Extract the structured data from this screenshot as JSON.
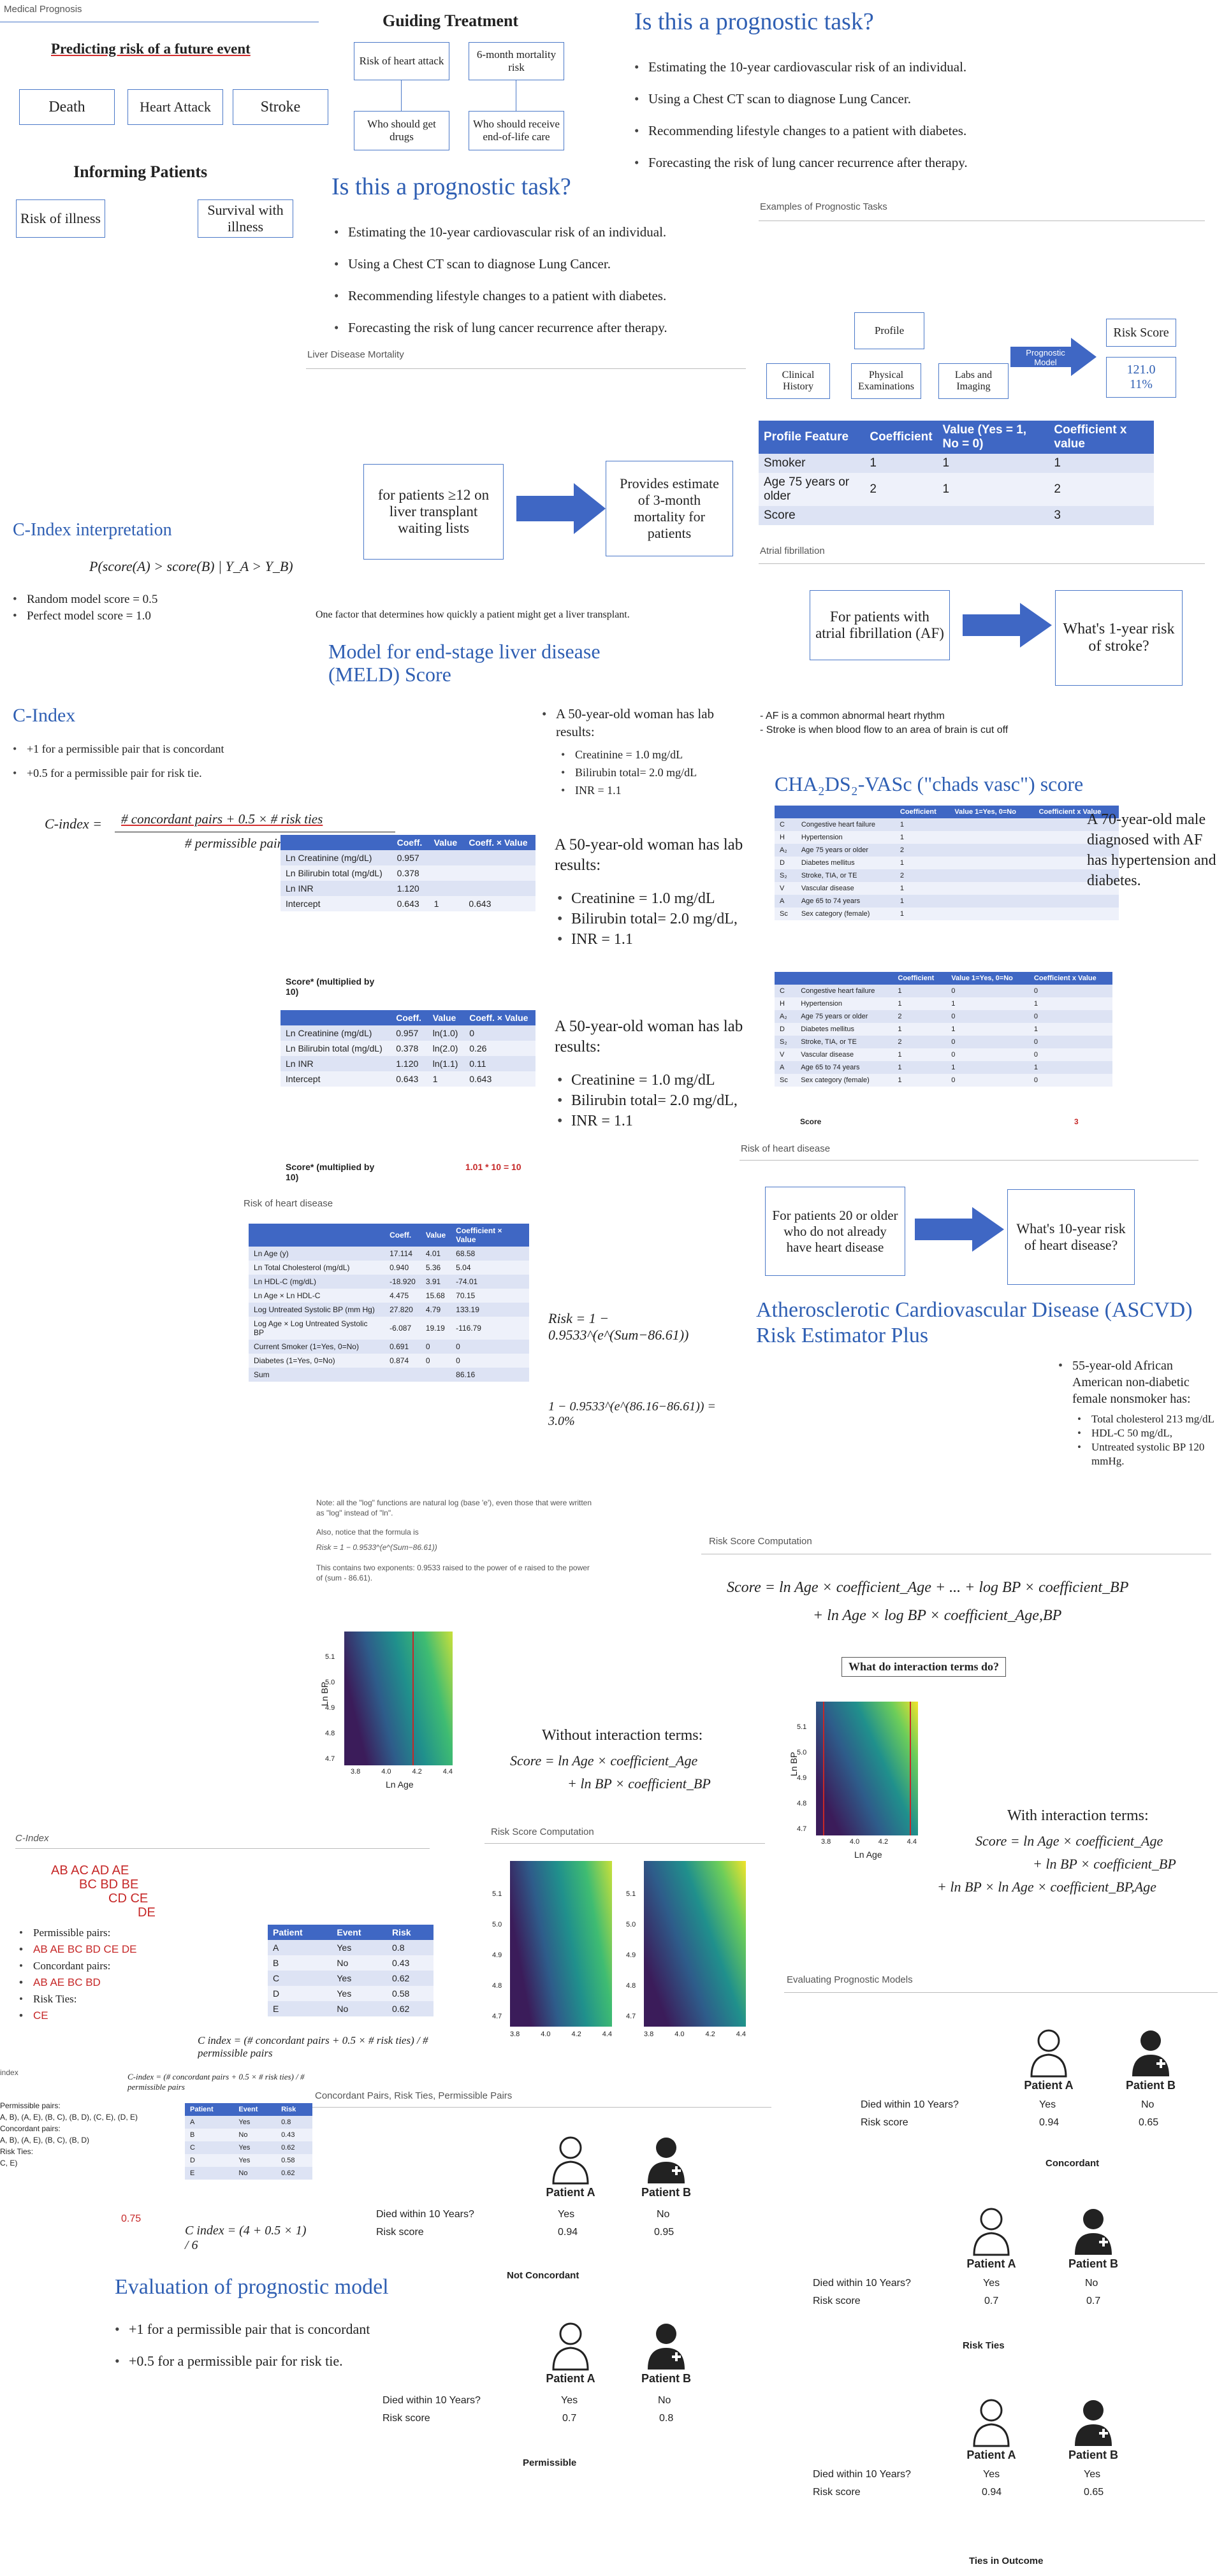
{
  "p1": {
    "caption": "Medical Prognosis",
    "title": "Predicting risk of a future event",
    "boxes": [
      "Death",
      "Heart Attack",
      "Stroke"
    ],
    "informing": "Informing Patients",
    "boxes2": [
      "Risk of illness",
      "Survival with illness"
    ]
  },
  "p2": {
    "title": "Guiding Treatment",
    "boxes": [
      "Risk of heart attack",
      "6-month mortality risk",
      "Who should get drugs",
      "Who should receive end-of-life care"
    ]
  },
  "p3": {
    "title": "Is this a prognostic task?",
    "items": [
      "Estimating the 10-year cardiovascular risk of an individual.",
      "Using a Chest CT scan to diagnose Lung Cancer.",
      "Recommending lifestyle changes to a patient with diabetes.",
      "Forecasting the risk of lung cancer recurrence after therapy."
    ]
  },
  "p4": {
    "title": "Is this a prognostic task?",
    "items": [
      "Estimating the 10-year cardiovascular risk of an individual.",
      "Using a Chest CT scan to diagnose Lung Cancer.",
      "Recommending lifestyle changes to a patient with diabetes.",
      "Forecasting the risk of lung cancer recurrence after therapy."
    ]
  },
  "p5": {
    "caption": "Examples of Prognostic Tasks",
    "profile": "Profile",
    "sub": [
      "Clinical History",
      "Physical Examinations",
      "Labs and Imaging"
    ],
    "model": "Prognostic Model",
    "score": "Risk Score",
    "score_vals": [
      "121.0",
      "11%"
    ]
  },
  "p6": {
    "headers": [
      "Profile Feature",
      "Coefficient",
      "Value (Yes = 1, No = 0)",
      "Coefficient x value"
    ],
    "rows": [
      [
        "Smoker",
        "1",
        "1",
        "1"
      ],
      [
        "Age 75 years or older",
        "2",
        "1",
        "2"
      ],
      [
        "Score",
        "",
        "",
        "3"
      ]
    ]
  },
  "p7": {
    "caption": "Liver Disease Mortality",
    "box1": "for patients ≥12 on liver transplant waiting lists",
    "box2": "Provides estimate of 3-month mortality for patients",
    "note": "One factor that determines how quickly a patient might get a liver transplant.",
    "title": "Model for end-stage liver disease (MELD) Score"
  },
  "p8": {
    "caption": "Atrial fibrillation",
    "box1": "For patients with atrial fibrillation (AF)",
    "box2": "What's 1-year risk of stroke?",
    "notes": [
      "- AF is a common abnormal heart rhythm",
      "- Stroke is when blood flow to an area of brain is cut off"
    ]
  },
  "p9": {
    "title": "C-Index interpretation",
    "formula": "P(score(A) > score(B) | Y_A > Y_B)",
    "items": [
      "Random model score = 0.5",
      "Perfect model score = 1.0"
    ]
  },
  "p10": {
    "title": "C-Index",
    "items": [
      "+1 for a permissible pair that is concordant",
      "+0.5 for a permissible pair for risk tie."
    ],
    "formula_lhs": "C-index =",
    "formula_num": "# concordant pairs + 0.5 × # risk ties",
    "formula_den": "# permissible pairs"
  },
  "p11": {
    "intro": "A 50-year-old woman has lab results:",
    "items": [
      "Creatinine = 1.0 mg/dL",
      "Bilirubin total= 2.0 mg/dL",
      "INR = 1.1"
    ]
  },
  "p12": {
    "headers": [
      "",
      "Coeff.",
      "Value",
      "Coeff. × Value"
    ],
    "rows": [
      [
        "Ln Creatinine (mg/dL)",
        "0.957",
        "",
        ""
      ],
      [
        "Ln Bilirubin total (mg/dL)",
        "0.378",
        "",
        ""
      ],
      [
        "Ln INR",
        "1.120",
        "",
        ""
      ],
      [
        "Intercept",
        "0.643",
        "1",
        "0.643"
      ]
    ],
    "foot": "Score* (multiplied by 10)"
  },
  "p13": {
    "intro": "A 50-year-old woman has lab results:",
    "items": [
      "Creatinine = 1.0 mg/dL",
      "Bilirubin total= 2.0 mg/dL,",
      "INR = 1.1"
    ]
  },
  "p14": {
    "headers": [
      "",
      "Coeff.",
      "Value",
      "Coeff. × Value"
    ],
    "rows": [
      [
        "Ln Creatinine (mg/dL)",
        "0.957",
        "ln(1.0)",
        "0"
      ],
      [
        "Ln Bilirubin total (mg/dL)",
        "0.378",
        "ln(2.0)",
        "0.26"
      ],
      [
        "Ln INR",
        "1.120",
        "ln(1.1)",
        "0.11"
      ],
      [
        "Intercept",
        "0.643",
        "1",
        "0.643"
      ]
    ],
    "foot": "Score* (multiplied by 10)",
    "foot_val": "1.01 * 10 = 10"
  },
  "p15": {
    "intro": "A 50-year-old woman has lab results:",
    "items": [
      "Creatinine = 1.0 mg/dL",
      "Bilirubin total= 2.0 mg/dL,",
      "INR = 1.1"
    ]
  },
  "p16": {
    "title": "CHA₂DS₂-VASc (\"chads vasc\") score",
    "desc": "A 70-year-old male diagnosed with AF has hypertension and diabetes.",
    "headers": [
      "",
      "",
      "Coefficient",
      "Value 1=Yes, 0=No",
      "Coefficient x Value"
    ],
    "rows": [
      [
        "C",
        "Congestive heart failure",
        "1"
      ],
      [
        "H",
        "Hypertension",
        "1"
      ],
      [
        "A₂",
        "Age 75 years or older",
        "2"
      ],
      [
        "D",
        "Diabetes mellitus",
        "1"
      ],
      [
        "S₂",
        "Stroke, TIA, or TE",
        "2"
      ],
      [
        "V",
        "Vascular disease",
        "1"
      ],
      [
        "A",
        "Age 65 to 74 years",
        "1"
      ],
      [
        "Sc",
        "Sex category (female)",
        "1"
      ]
    ],
    "score": "Score"
  },
  "p17": {
    "headers": [
      "",
      "",
      "Coefficient",
      "Value 1=Yes, 0=No",
      "Coefficient x Value"
    ],
    "rows": [
      [
        "C",
        "Congestive heart failure",
        "1",
        "0",
        "0"
      ],
      [
        "H",
        "Hypertension",
        "1",
        "1",
        "1"
      ],
      [
        "A₂",
        "Age 75 years or older",
        "2",
        "0",
        "0"
      ],
      [
        "D",
        "Diabetes mellitus",
        "1",
        "1",
        "1"
      ],
      [
        "S₂",
        "Stroke, TIA, or TE",
        "2",
        "0",
        "0"
      ],
      [
        "V",
        "Vascular disease",
        "1",
        "0",
        "0"
      ],
      [
        "A",
        "Age 65 to 74 years",
        "1",
        "1",
        "1"
      ],
      [
        "Sc",
        "Sex category (female)",
        "1",
        "0",
        "0"
      ]
    ],
    "score": "Score",
    "score_val": "3"
  },
  "p18": {
    "caption": "Risk of heart disease",
    "box1": "For patients 20 or older who do not already have heart disease",
    "box2": "What's 10-year risk of heart disease?",
    "title": "Atherosclerotic Cardiovascular Disease (ASCVD) Risk Estimator Plus",
    "intro": "55-year-old African American non-diabetic female nonsmoker has:",
    "items": [
      "Total cholesterol 213 mg/dL",
      "HDL-C 50 mg/dL,",
      "Untreated systolic BP 120 mmHg."
    ]
  },
  "p19": {
    "caption": "Risk of heart disease",
    "headers": [
      "",
      "Coeff.",
      "Value",
      "Coefficient × Value"
    ],
    "rows": [
      [
        "Ln Age (y)",
        "17.114",
        "4.01",
        "68.58"
      ],
      [
        "Ln Total Cholesterol (mg/dL)",
        "0.940",
        "5.36",
        "5.04"
      ],
      [
        "Ln HDL-C (mg/dL)",
        "-18.920",
        "3.91",
        "-74.01"
      ],
      [
        "Ln Age × Ln HDL-C",
        "4.475",
        "15.68",
        "70.15"
      ],
      [
        "Log Untreated Systolic BP (mm Hg)",
        "27.820",
        "4.79",
        "133.19"
      ],
      [
        "Log Age × Log Untreated Systolic BP",
        "-6.087",
        "19.19",
        "-116.79"
      ],
      [
        "Current Smoker (1=Yes, 0=No)",
        "0.691",
        "0",
        "0"
      ],
      [
        "Diabetes (1=Yes, 0=No)",
        "0.874",
        "0",
        "0"
      ],
      [
        "Sum",
        "",
        "",
        "86.16"
      ]
    ],
    "risk": "Risk = 1 − 0.9533^(e^(Sum−86.61))",
    "risk2": "1 − 0.9533^(e^(86.16−86.61)) = 3.0%"
  },
  "p20": {
    "notes": [
      "Note: all the \"log\" functions are natural log (base 'e'), even those that were written as \"log\" instead of \"ln\".",
      "Also, notice that the formula is",
      "Risk = 1 − 0.9533^(e^(Sum−86.61))",
      "This contains two exponents: 0.9533 raised to the power of e raised to the power of (sum - 86.61)."
    ]
  },
  "p21": {
    "caption": "Risk Score Computation",
    "formula1": "Score = ln Age × coefficient_Age + ... + log BP × coefficient_BP",
    "formula2": "+ ln Age × log BP × coefficient_Age,BP",
    "question": "What do interaction terms do?"
  },
  "p22": {
    "ylabel": "Ln BP",
    "xlabel": "Ln Age",
    "yticks": [
      "5.1",
      "5.0",
      "4.9",
      "4.8",
      "4.7"
    ],
    "xticks": [
      "3.8",
      "4.0",
      "4.2",
      "4.4"
    ],
    "without": "Without interaction terms:",
    "f1": "Score = ln Age × coefficient_Age",
    "f2": "+ ln BP × coefficient_BP"
  },
  "p23": {
    "ylabel": "Ln BP",
    "xlabel": "Ln Age",
    "yticks": [
      "5.1",
      "5.0",
      "4.9",
      "4.8",
      "4.7"
    ],
    "xticks": [
      "3.8",
      "4.0",
      "4.2",
      "4.4"
    ],
    "with": "With interaction terms:",
    "f1": "Score = ln Age × coefficient_Age",
    "f2": "+ ln BP × coefficient_BP",
    "f3": "+ ln BP × ln Age × coefficient_BP,Age"
  },
  "p24": {
    "caption": "C-Index",
    "pairs_hand": [
      "AB AC AD AE",
      "BC BD BE",
      "CD CE",
      "DE"
    ],
    "items": [
      "Permissible pairs:",
      "Concordant pairs:",
      "Risk Ties:"
    ],
    "hand": [
      "AB AE BC BD CE DE",
      "AB AE BC BD",
      "CE"
    ],
    "headers": [
      "Patient",
      "Event",
      "Risk"
    ],
    "rows": [
      [
        "A",
        "Yes",
        "0.8"
      ],
      [
        "B",
        "No",
        "0.43"
      ],
      [
        "C",
        "Yes",
        "0.62"
      ],
      [
        "D",
        "Yes",
        "0.58"
      ],
      [
        "E",
        "No",
        "0.62"
      ]
    ],
    "formula": "C index = (# concordant pairs + 0.5 × # risk ties) / # permissible pairs"
  },
  "p25": {
    "caption": "Risk Score Computation",
    "yticks": [
      "5.1",
      "5.0",
      "4.9",
      "4.8",
      "4.7"
    ],
    "xticks": [
      "3.8",
      "4.0",
      "4.2",
      "4.4"
    ]
  },
  "p26": {
    "caption": "Evaluating Prognostic Models",
    "patientA": "Patient A",
    "patientB": "Patient B",
    "row1": "Died within 10 Years?",
    "row2": "Risk score",
    "a1": "Yes",
    "b1": "No",
    "a2": "0.94",
    "b2": "0.65",
    "label": "Concordant"
  },
  "p27": {
    "caption": "index",
    "formula": "C-index = (# concordant pairs + 0.5 × # risk ties) / # permissible pairs",
    "headers": [
      "Patient",
      "Event",
      "Risk"
    ],
    "rows": [
      [
        "A",
        "Yes",
        "0.8"
      ],
      [
        "B",
        "No",
        "0.43"
      ],
      [
        "C",
        "Yes",
        "0.62"
      ],
      [
        "D",
        "Yes",
        "0.58"
      ],
      [
        "E",
        "No",
        "0.62"
      ]
    ],
    "left": [
      "Permissible pairs:",
      "A, B), (A, E), (B, C), (B, D), (C, E), (D, E)",
      "Concordant pairs:",
      "A, B), (A, E), (B, C), (B, D)",
      "Risk Ties:",
      "C, E)"
    ],
    "cindex": "C index = (4 + 0.5 × 1) / 6",
    "hand": "0.75"
  },
  "p28": {
    "caption": "Concordant Pairs, Risk Ties, Permissible Pairs",
    "patientA": "Patient A",
    "patientB": "Patient B",
    "row1": "Died within 10 Years?",
    "row2": "Risk score",
    "a1": "Yes",
    "b1": "No",
    "a2": "0.94",
    "b2": "0.95",
    "label": "Not Concordant"
  },
  "p29": {
    "title": "Evaluation of prognostic model",
    "items": [
      "+1 for a permissible pair that is concordant",
      "+0.5 for a permissible pair for risk tie."
    ]
  },
  "p30": {
    "patientA": "Patient A",
    "patientB": "Patient B",
    "row1": "Died within 10 Years?",
    "row2": "Risk score",
    "a1": "Yes",
    "b1": "No",
    "a2": "0.7",
    "b2": "0.8",
    "label": "Permissible"
  },
  "p31": {
    "patientA": "Patient A",
    "patientB": "Patient B",
    "row1": "Died within 10 Years?",
    "row2": "Risk score",
    "a1": "Yes",
    "b1": "No",
    "a2": "0.7",
    "b2": "0.7",
    "label": "Risk Ties"
  },
  "p32": {
    "patientA": "Patient A",
    "patientB": "Patient B",
    "row1": "Died within 10 Years?",
    "row2": "Risk score",
    "a1": "Yes",
    "b1": "Yes",
    "a2": "0.94",
    "b2": "0.65",
    "label": "Ties in Outcome"
  },
  "colors": {
    "blue": "#2f5fb3",
    "box": "#4a78c8",
    "red": "#c62828",
    "tableHead": "#3f67c4"
  }
}
